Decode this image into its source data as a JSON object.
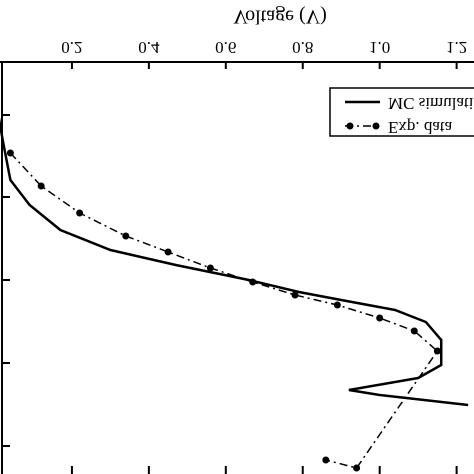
{
  "chart_data": {
    "type": "line",
    "xlabel": "Voltage (V)",
    "xlim": [
      0,
      1.24
    ],
    "xticks": [
      0.2,
      0.4,
      0.6,
      0.8,
      {
        "value": 1.0,
        "label": "1.0"
      },
      1.2
    ],
    "ylim": [
      0,
      360
    ],
    "legend": "top-right",
    "series": [
      {
        "name": "MC simulation",
        "color": "#000",
        "style": "solid",
        "marker": false,
        "x": [
          0.01,
          0.02,
          0.04,
          0.09,
          0.17,
          0.3,
          0.47,
          0.66,
          0.79,
          0.9,
          1.04,
          1.12,
          1.16,
          1.16,
          1.1,
          0.92,
          1.0,
          1.23
        ],
        "y": [
          8,
          30,
          70,
          95,
          120,
          140,
          155,
          170,
          182,
          190,
          200,
          212,
          230,
          255,
          268,
          280,
          285,
          295
        ]
      },
      {
        "name": "Exp. data",
        "color": "#000",
        "style": "dashdot",
        "marker": true,
        "x": [
          0.04,
          0.12,
          0.22,
          0.34,
          0.45,
          0.56,
          0.67,
          0.78,
          0.89,
          1.0,
          1.09,
          1.15,
          0.94,
          0.86
        ],
        "y": [
          43,
          76,
          103,
          126,
          142,
          158,
          172,
          185,
          195,
          208,
          221,
          241,
          358,
          350
        ]
      }
    ]
  }
}
